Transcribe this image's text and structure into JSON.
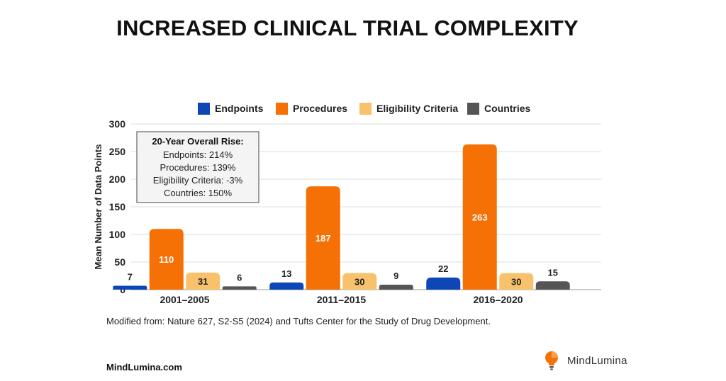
{
  "page": {
    "title": "INCREASED CLINICAL TRIAL COMPLEXITY",
    "source": "Modified from: Nature 627, S2-S5 (2024) and Tufts Center for the Study of Drug Development.",
    "site": "MindLumina.com",
    "brand": "MindLumina"
  },
  "chart_data": {
    "type": "bar",
    "title": "INCREASED CLINICAL TRIAL COMPLEXITY",
    "xlabel": "",
    "ylabel": "Mean Number of Data Points",
    "ylim": [
      0,
      300
    ],
    "yticks": [
      0,
      50,
      100,
      150,
      200,
      250,
      300
    ],
    "grid": true,
    "legend_position": "top",
    "categories": [
      "2001–2005",
      "2011–2015",
      "2016–2020"
    ],
    "series": [
      {
        "name": "Endpoints",
        "color": "#0d47b5",
        "label_color": "#222222",
        "values": [
          7,
          13,
          22
        ]
      },
      {
        "name": "Procedures",
        "color": "#f57105",
        "label_color": "#ffffff",
        "values": [
          110,
          187,
          263
        ]
      },
      {
        "name": "Eligibility Criteria",
        "color": "#f7c26b",
        "label_color": "#222222",
        "values": [
          31,
          30,
          30
        ]
      },
      {
        "name": "Countries",
        "color": "#555555",
        "label_color": "#222222",
        "values": [
          6,
          9,
          15
        ]
      }
    ],
    "annotation": {
      "title": "20-Year Overall Rise:",
      "lines": [
        "Endpoints: 214%",
        "Procedures: 139%",
        "Eligibility Criteria: -3%",
        "Countries: 150%"
      ]
    }
  }
}
